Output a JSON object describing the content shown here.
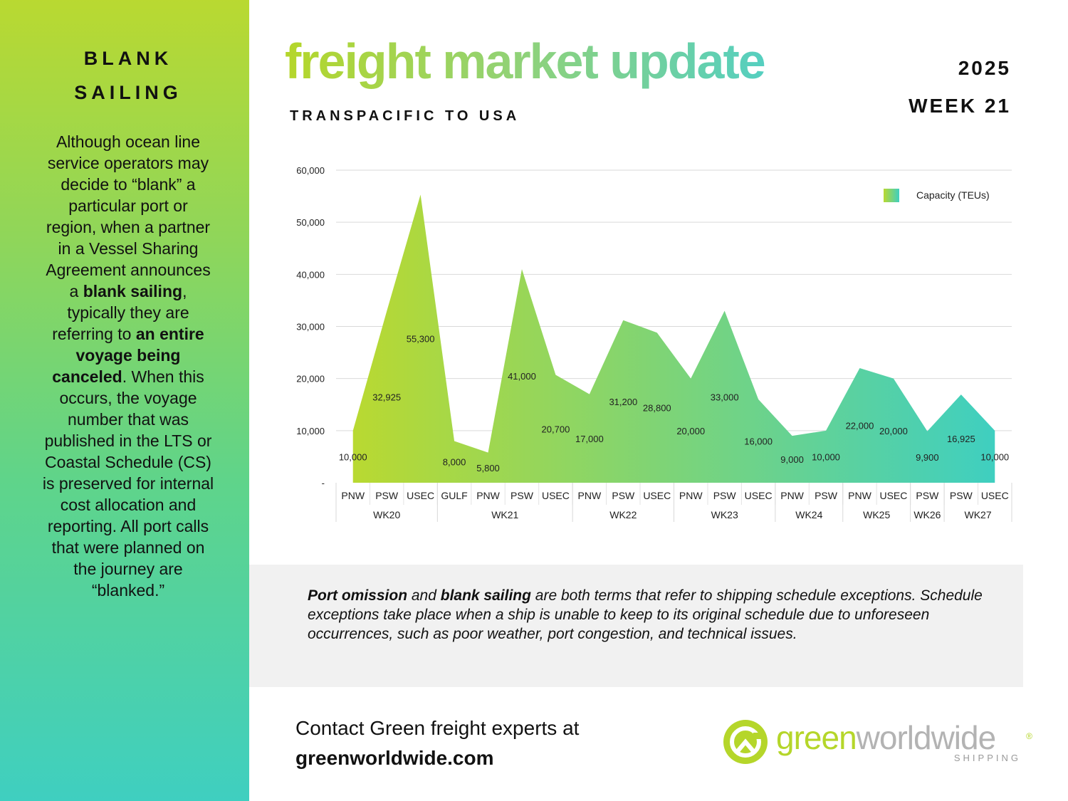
{
  "sidebar": {
    "title_line1": "BLANK",
    "title_line2": "SAILING",
    "body": [
      {
        "text": "Although ocean line service operators may decide to “blank” a particular port or region, when a partner in a Vessel Sharing Agreement announces a ",
        "bold": false
      },
      {
        "text": "blank sailing",
        "bold": true
      },
      {
        "text": ", typically they are referring to ",
        "bold": false
      },
      {
        "text": "an entire voyage being canceled",
        "bold": true
      },
      {
        "text": ". When this occurs, the voyage number that was published in the LTS or Coastal Schedule (CS) is preserved for internal cost allocation and reporting. All port calls that were planned on the journey are “blanked.”",
        "bold": false
      }
    ]
  },
  "header": {
    "title": "freight market update",
    "subtitle": "TRANSPACIFIC TO USA",
    "year": "2025",
    "week": "WEEK 21"
  },
  "colors": {
    "gradient_start": "#b9d931",
    "gradient_end": "#3fcfc0"
  },
  "chart_data": {
    "type": "area",
    "title": "",
    "xlabel": "",
    "ylabel": "",
    "ylim": [
      0,
      60000
    ],
    "yticks": [
      0,
      10000,
      20000,
      30000,
      40000,
      50000,
      60000
    ],
    "ytick_labels": [
      "-",
      "10,000",
      "20,000",
      "30,000",
      "40,000",
      "50,000",
      "60,000"
    ],
    "grid": true,
    "legend_position": "top-right",
    "categories": [
      "PNW",
      "PSW",
      "USEC",
      "GULF",
      "PNW",
      "PSW",
      "USEC",
      "PNW",
      "PSW",
      "USEC",
      "PNW",
      "PSW",
      "USEC",
      "PNW",
      "PSW",
      "PNW",
      "USEC",
      "PSW",
      "PSW",
      "USEC"
    ],
    "groups": [
      {
        "label": "WK20",
        "count": 3
      },
      {
        "label": "WK21",
        "count": 4
      },
      {
        "label": "WK22",
        "count": 3
      },
      {
        "label": "WK23",
        "count": 3
      },
      {
        "label": "WK24",
        "count": 2
      },
      {
        "label": "WK25",
        "count": 2
      },
      {
        "label": "WK26",
        "count": 1
      },
      {
        "label": "WK27",
        "count": 2
      }
    ],
    "series": [
      {
        "name": "Capacity (TEUs)",
        "values": [
          10000,
          32925,
          55300,
          8000,
          5800,
          41000,
          20700,
          17000,
          31200,
          28800,
          20000,
          33000,
          16000,
          9000,
          10000,
          22000,
          20000,
          9900,
          16925,
          10000
        ],
        "labels": [
          "10,000",
          "32,925",
          "55,300",
          "8,000",
          "5,800",
          "41,000",
          "20,700",
          "17,000",
          "31,200",
          "28,800",
          "20,000",
          "33,000",
          "16,000",
          "9,000",
          "10,000",
          "22,000",
          "20,000",
          "9,900",
          "16,925",
          "10,000"
        ]
      }
    ]
  },
  "note": [
    {
      "text": "Port omission",
      "bold": true
    },
    {
      "text": " and ",
      "bold": false
    },
    {
      "text": "blank sailing",
      "bold": true
    },
    {
      "text": " are both terms that refer to shipping schedule exceptions. Schedule exceptions take place when a ship is unable to keep to its original schedule due to unforeseen occurrences, such as poor weather, port congestion, and technical issues.",
      "bold": false
    }
  ],
  "contact": {
    "line1": "Contact Green freight experts at",
    "url": "greenworldwide.com"
  },
  "logo": {
    "part1": "green",
    "part2": "worldwide",
    "tagline": "SHIPPING",
    "registered": "®"
  }
}
